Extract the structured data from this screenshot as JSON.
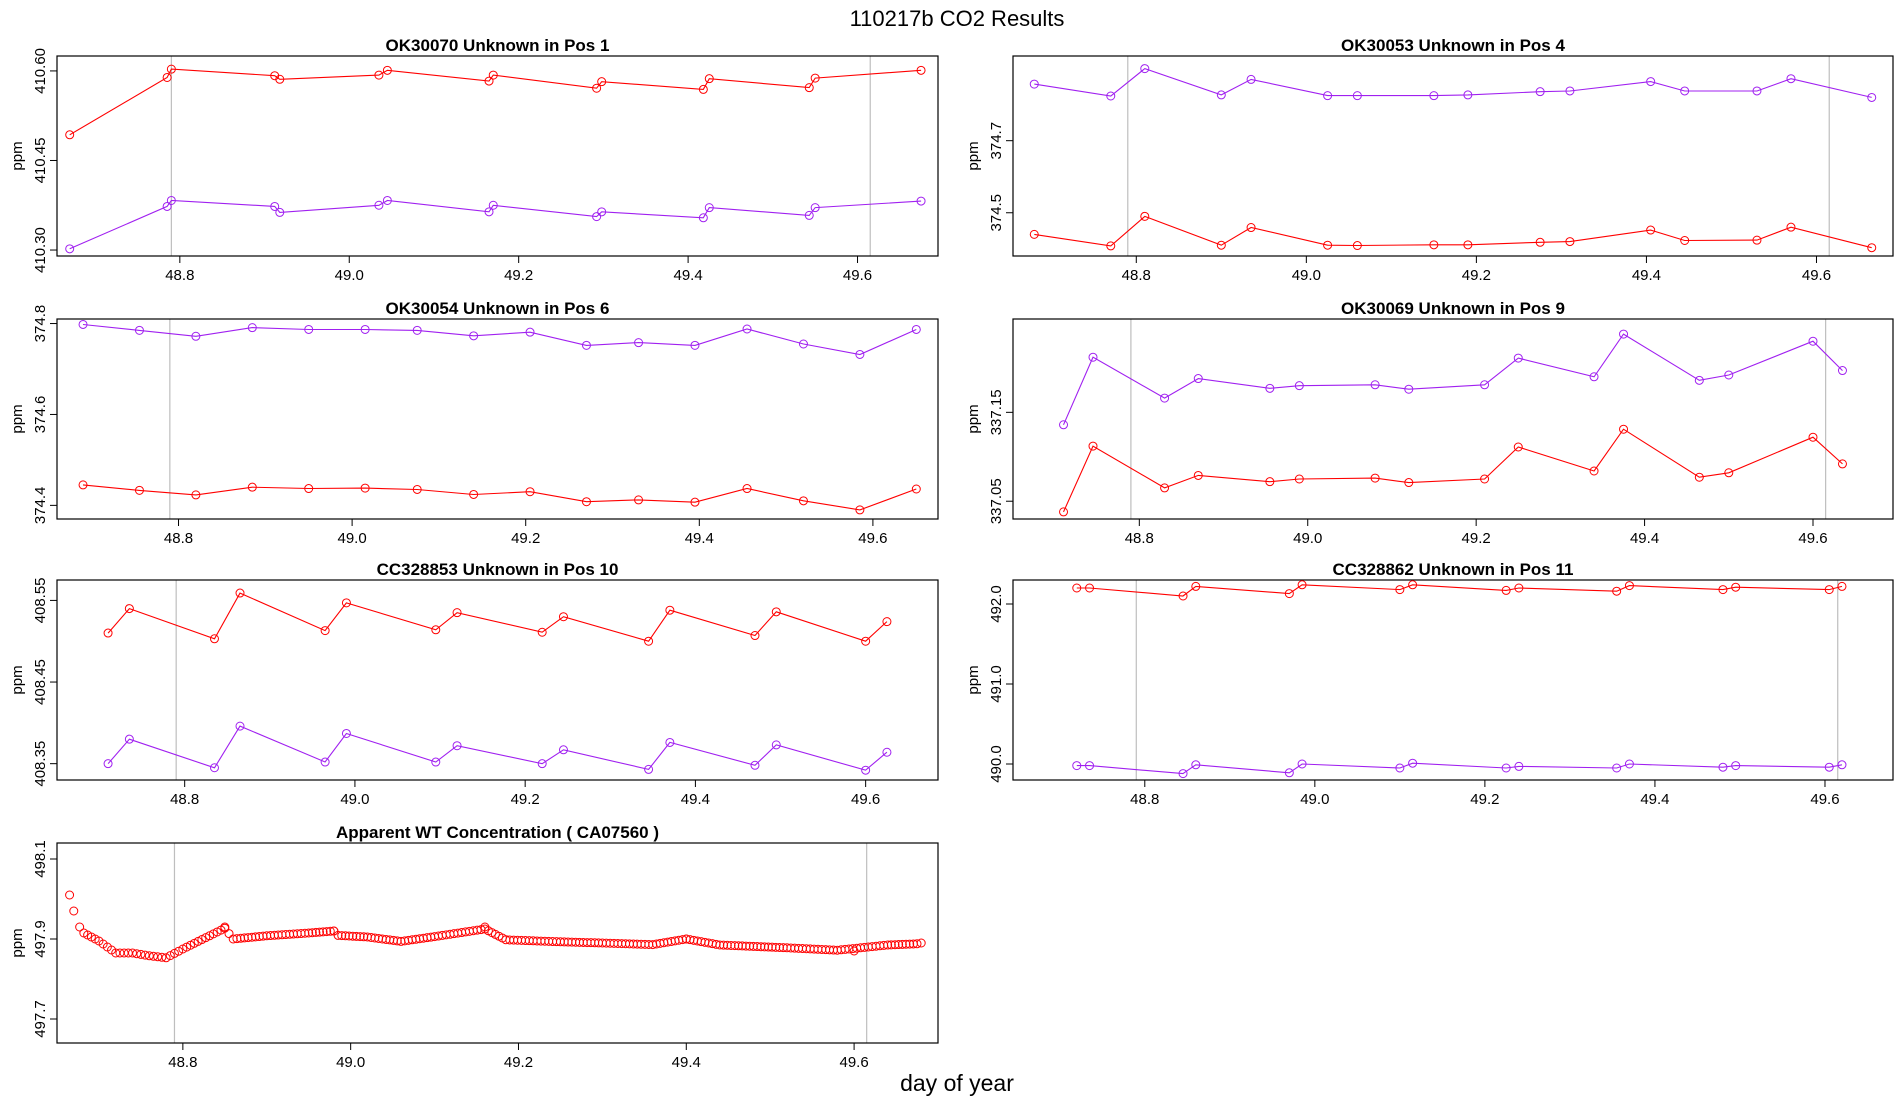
{
  "title": "110217b  CO2 Results",
  "xlabel": "day of year",
  "colors": {
    "red": "#ff0000",
    "purple": "#a020f0",
    "refline": "#bebebe",
    "frame": "#000000"
  },
  "chart_data": [
    {
      "type": "line",
      "title": "OK30070    Unknown in Pos 1",
      "ylabel": "ppm",
      "xlim": [
        48.655,
        49.695
      ],
      "ylim": [
        410.29,
        410.625
      ],
      "xticks": [
        "48.8",
        "49.0",
        "49.2",
        "49.4",
        "49.6"
      ],
      "yticks": [
        "410.30",
        "410.45",
        "410.60"
      ],
      "vlines": [
        48.79,
        49.615
      ],
      "series": [
        {
          "color": "red",
          "x": [
            48.67,
            48.785,
            48.79,
            48.912,
            48.918,
            49.035,
            49.045,
            49.165,
            49.17,
            49.292,
            49.298,
            49.418,
            49.425,
            49.543,
            49.55,
            49.675
          ],
          "y": [
            410.493,
            410.589,
            410.603,
            410.592,
            410.586,
            410.593,
            410.601,
            410.583,
            410.593,
            410.571,
            410.582,
            410.569,
            410.587,
            410.572,
            410.588,
            410.601
          ]
        },
        {
          "color": "purple",
          "x": [
            48.67,
            48.785,
            48.79,
            48.912,
            48.918,
            49.035,
            49.045,
            49.165,
            49.17,
            49.292,
            49.298,
            49.418,
            49.425,
            49.543,
            49.55,
            49.675
          ],
          "y": [
            410.302,
            410.373,
            410.383,
            410.373,
            410.363,
            410.375,
            410.383,
            410.364,
            410.375,
            410.356,
            410.364,
            410.354,
            410.371,
            410.358,
            410.371,
            410.382
          ]
        }
      ]
    },
    {
      "type": "line",
      "title": "OK30053    Unknown in Pos 4",
      "ylabel": "ppm",
      "xlim": [
        48.655,
        49.69
      ],
      "ylim": [
        374.38,
        374.935
      ],
      "xticks": [
        "48.8",
        "49.0",
        "49.2",
        "49.4",
        "49.6"
      ],
      "yticks": [
        "374.5",
        "374.7"
      ],
      "vlines": [
        48.79,
        49.615
      ],
      "series": [
        {
          "color": "red",
          "x": [
            48.68,
            48.77,
            48.81,
            48.9,
            48.935,
            49.025,
            49.06,
            49.15,
            49.19,
            49.275,
            49.31,
            49.405,
            49.445,
            49.53,
            49.57,
            49.665
          ],
          "y": [
            374.44,
            374.408,
            374.49,
            374.41,
            374.459,
            374.41,
            374.409,
            374.411,
            374.411,
            374.418,
            374.42,
            374.452,
            374.423,
            374.424,
            374.46,
            374.403
          ]
        },
        {
          "color": "purple",
          "x": [
            48.68,
            48.77,
            48.81,
            48.9,
            48.935,
            49.025,
            49.06,
            49.15,
            49.19,
            49.275,
            49.31,
            49.405,
            49.445,
            49.53,
            49.57,
            49.665
          ],
          "y": [
            374.857,
            374.824,
            374.9,
            374.827,
            374.87,
            374.825,
            374.825,
            374.825,
            374.827,
            374.836,
            374.838,
            374.864,
            374.838,
            374.838,
            374.872,
            374.82
          ]
        }
      ]
    },
    {
      "type": "line",
      "title": "OK30054    Unknown in Pos 6",
      "ylabel": "ppm",
      "xlim": [
        48.66,
        49.675
      ],
      "ylim": [
        374.37,
        374.81
      ],
      "xticks": [
        "48.8",
        "49.0",
        "49.2",
        "49.4",
        "49.6"
      ],
      "yticks": [
        "374.4",
        "374.6",
        "374.8"
      ],
      "vlines": [
        48.79
      ],
      "series": [
        {
          "color": "red",
          "x": [
            48.69,
            48.755,
            48.82,
            48.885,
            48.95,
            49.015,
            49.075,
            49.14,
            49.205,
            49.27,
            49.33,
            49.395,
            49.455,
            49.52,
            49.585,
            49.65
          ],
          "y": [
            374.445,
            374.433,
            374.423,
            374.44,
            374.437,
            374.438,
            374.435,
            374.424,
            374.43,
            374.408,
            374.412,
            374.407,
            374.437,
            374.41,
            374.39,
            374.436
          ]
        },
        {
          "color": "purple",
          "x": [
            48.69,
            48.755,
            48.82,
            48.885,
            48.95,
            49.015,
            49.075,
            49.14,
            49.205,
            49.27,
            49.33,
            49.395,
            49.455,
            49.52,
            49.585,
            49.65
          ],
          "y": [
            374.798,
            374.785,
            374.772,
            374.791,
            374.787,
            374.787,
            374.785,
            374.773,
            374.781,
            374.752,
            374.758,
            374.752,
            374.788,
            374.755,
            374.732,
            374.787
          ]
        }
      ]
    },
    {
      "type": "line",
      "title": "OK30069    Unknown in Pos 9",
      "ylabel": "ppm",
      "xlim": [
        48.65,
        49.695
      ],
      "ylim": [
        337.03,
        337.255
      ],
      "xticks": [
        "48.8",
        "49.0",
        "49.2",
        "49.4",
        "49.6"
      ],
      "yticks": [
        "337.05",
        "337.15"
      ],
      "vlines": [
        48.79,
        49.615
      ],
      "series": [
        {
          "color": "red",
          "x": [
            48.71,
            48.745,
            48.83,
            48.87,
            48.955,
            48.99,
            49.08,
            49.12,
            49.21,
            49.25,
            49.34,
            49.375,
            49.465,
            49.5,
            49.6,
            49.635
          ],
          "y": [
            337.038,
            337.112,
            337.065,
            337.079,
            337.072,
            337.075,
            337.076,
            337.071,
            337.075,
            337.111,
            337.084,
            337.131,
            337.077,
            337.082,
            337.122,
            337.092
          ]
        },
        {
          "color": "purple",
          "x": [
            48.71,
            48.745,
            48.83,
            48.87,
            48.955,
            48.99,
            49.08,
            49.12,
            49.21,
            49.25,
            49.34,
            49.375,
            49.465,
            49.5,
            49.6,
            49.635
          ],
          "y": [
            337.136,
            337.212,
            337.166,
            337.188,
            337.177,
            337.18,
            337.181,
            337.176,
            337.181,
            337.211,
            337.19,
            337.238,
            337.186,
            337.192,
            337.23,
            337.197
          ]
        }
      ]
    },
    {
      "type": "line",
      "title": "CC328853    Unknown in Pos 10",
      "ylabel": "ppm",
      "xlim": [
        48.65,
        49.685
      ],
      "ylim": [
        408.33,
        408.575
      ],
      "xticks": [
        "48.8",
        "49.0",
        "49.2",
        "49.4",
        "49.6"
      ],
      "yticks": [
        "408.35",
        "408.45",
        "408.55"
      ],
      "vlines": [
        48.79
      ],
      "series": [
        {
          "color": "red",
          "x": [
            48.71,
            48.735,
            48.835,
            48.865,
            48.965,
            48.99,
            49.095,
            49.12,
            49.22,
            49.245,
            49.345,
            49.37,
            49.47,
            49.495,
            49.6,
            49.625
          ],
          "y": [
            408.51,
            408.54,
            408.503,
            408.559,
            408.513,
            408.547,
            408.514,
            408.535,
            408.511,
            408.53,
            408.5,
            408.538,
            408.507,
            408.536,
            408.5,
            408.524
          ]
        },
        {
          "color": "purple",
          "x": [
            48.71,
            48.735,
            48.835,
            48.865,
            48.965,
            48.99,
            49.095,
            49.12,
            49.22,
            49.245,
            49.345,
            49.37,
            49.47,
            49.495,
            49.6,
            49.625
          ],
          "y": [
            408.35,
            408.38,
            408.345,
            408.396,
            408.352,
            408.387,
            408.352,
            408.372,
            408.35,
            408.367,
            408.343,
            408.376,
            408.348,
            408.373,
            408.342,
            408.364
          ]
        }
      ]
    },
    {
      "type": "line",
      "title": "CC328862    Unknown in Pos 11",
      "ylabel": "ppm",
      "xlim": [
        48.645,
        49.68
      ],
      "ylim": [
        489.8,
        492.3
      ],
      "xticks": [
        "48.8",
        "49.0",
        "49.2",
        "49.4",
        "49.6"
      ],
      "yticks": [
        "490.0",
        "491.0",
        "492.0"
      ],
      "vlines": [
        48.79,
        49.615
      ],
      "series": [
        {
          "color": "red",
          "x": [
            48.72,
            48.735,
            48.845,
            48.86,
            48.97,
            48.985,
            49.1,
            49.115,
            49.225,
            49.24,
            49.355,
            49.37,
            49.48,
            49.495,
            49.605,
            49.62
          ],
          "y": [
            492.2,
            492.2,
            492.1,
            492.22,
            492.13,
            492.24,
            492.18,
            492.24,
            492.17,
            492.2,
            492.16,
            492.23,
            492.18,
            492.21,
            492.18,
            492.22
          ]
        },
        {
          "color": "purple",
          "x": [
            48.72,
            48.735,
            48.845,
            48.86,
            48.97,
            48.985,
            49.1,
            49.115,
            49.225,
            49.24,
            49.355,
            49.37,
            49.48,
            49.495,
            49.605,
            49.62
          ],
          "y": [
            489.98,
            489.98,
            489.88,
            489.99,
            489.89,
            490.0,
            489.95,
            490.01,
            489.95,
            489.97,
            489.95,
            490.0,
            489.96,
            489.98,
            489.96,
            489.99
          ]
        }
      ]
    },
    {
      "type": "scatter",
      "title": "Apparent WT Concentration ( CA07560 )",
      "ylabel": "ppm",
      "xlim": [
        48.65,
        49.7
      ],
      "ylim": [
        497.64,
        498.14
      ],
      "xticks": [
        "48.8",
        "49.0",
        "49.2",
        "49.4",
        "49.6"
      ],
      "yticks": [
        "497.7",
        "497.9",
        "498.1"
      ],
      "vlines": [
        48.79,
        49.615
      ],
      "series": [
        {
          "color": "red",
          "x": [
            48.665,
            48.67,
            48.677,
            48.85,
            48.98,
            49.16,
            49.4,
            49.6,
            49.68
          ],
          "y": [
            498.01,
            497.97,
            497.93,
            497.93,
            497.92,
            497.93,
            497.9,
            497.87,
            497.89
          ],
          "curve_x": [
            48.682,
            48.7,
            48.72,
            48.74,
            48.76,
            48.78,
            48.8,
            48.85,
            48.86,
            48.9,
            48.95,
            48.98,
            48.985,
            49.02,
            49.06,
            49.1,
            49.16,
            49.185,
            49.25,
            49.3,
            49.36,
            49.4,
            49.44,
            49.52,
            49.58,
            49.64,
            49.675
          ],
          "curve_y": [
            497.915,
            497.895,
            497.865,
            497.865,
            497.858,
            497.853,
            497.875,
            497.927,
            497.9,
            497.908,
            497.915,
            497.92,
            497.909,
            497.905,
            497.894,
            497.906,
            497.925,
            497.898,
            497.893,
            497.89,
            497.886,
            497.9,
            497.885,
            497.878,
            497.872,
            497.885,
            497.888
          ]
        }
      ]
    }
  ]
}
